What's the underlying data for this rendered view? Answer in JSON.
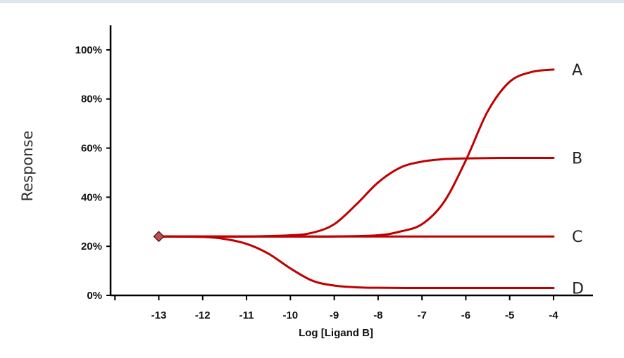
{
  "chart_data": {
    "type": "line",
    "title": "",
    "xlabel": "Log [Ligand B]",
    "ylabel": "Response",
    "xlim": [
      -14.1,
      -3.1
    ],
    "ylim": [
      0,
      110
    ],
    "x_ticks": [
      -13,
      -12,
      -11,
      -10,
      -9,
      -8,
      -7,
      -6,
      -5,
      -4
    ],
    "x_tick_labels": [
      "-13",
      "-12",
      "-11",
      "-10",
      "-9",
      "-8",
      "-7",
      "-6",
      "-5",
      "-4"
    ],
    "y_ticks": [
      0,
      20,
      40,
      60,
      80,
      100
    ],
    "y_tick_labels": [
      "0%",
      "20%",
      "40%",
      "60%",
      "80%",
      "100%"
    ],
    "grid": false,
    "legend": "labels at line ends (right)",
    "line_color": "#c00000",
    "marker": {
      "x": -13,
      "y": 24,
      "shape": "diamond",
      "color": "#c0504d"
    },
    "series": [
      {
        "name": "A",
        "x": [
          -13,
          -12,
          -11,
          -10,
          -9,
          -8,
          -7.5,
          -7,
          -6.5,
          -6,
          -5.5,
          -5,
          -4.5,
          -4
        ],
        "y": [
          24,
          24,
          24,
          24,
          24,
          24.5,
          26,
          29,
          38,
          55,
          75,
          87,
          91,
          92
        ]
      },
      {
        "name": "B",
        "x": [
          -13,
          -12,
          -11,
          -10,
          -9.5,
          -9,
          -8.5,
          -8,
          -7.5,
          -7,
          -6.5,
          -6,
          -5,
          -4
        ],
        "y": [
          24,
          24,
          24,
          24.5,
          25.5,
          29,
          37,
          46,
          52,
          54.5,
          55.5,
          55.8,
          56,
          56
        ]
      },
      {
        "name": "C",
        "x": [
          -13,
          -12,
          -11,
          -10,
          -9,
          -8,
          -7,
          -6,
          -5,
          -4
        ],
        "y": [
          24,
          24,
          24,
          24,
          24,
          24,
          24,
          24,
          24,
          24
        ]
      },
      {
        "name": "D",
        "x": [
          -13,
          -12,
          -11.5,
          -11,
          -10.5,
          -10,
          -9.5,
          -9,
          -8.5,
          -8,
          -7,
          -6,
          -5,
          -4
        ],
        "y": [
          24,
          23.8,
          23,
          21,
          17,
          11,
          6,
          4,
          3.3,
          3.1,
          3,
          3,
          3,
          3
        ]
      }
    ]
  }
}
